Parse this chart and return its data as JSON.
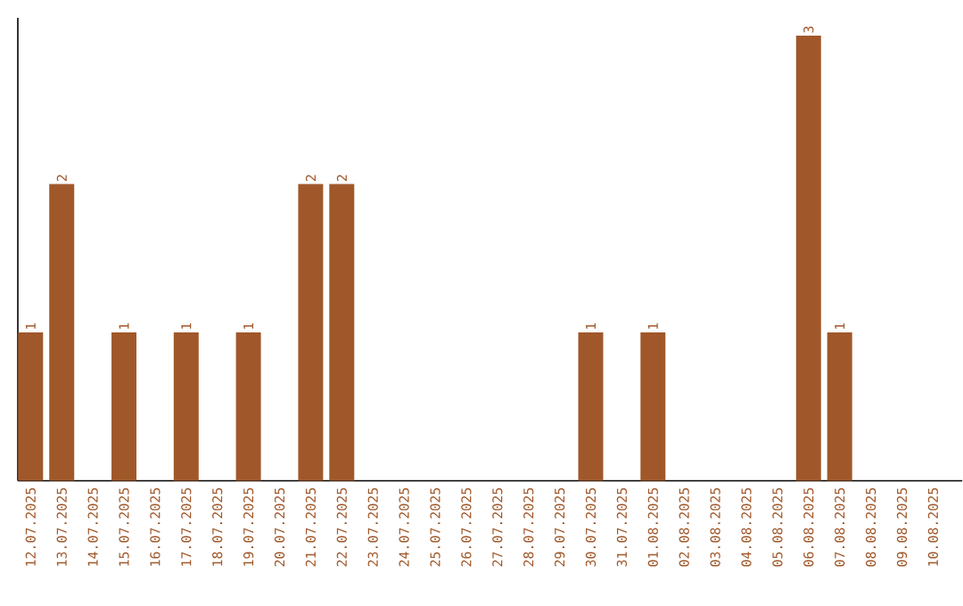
{
  "chart_data": {
    "type": "bar",
    "categories": [
      "12.07.2025",
      "13.07.2025",
      "14.07.2025",
      "15.07.2025",
      "16.07.2025",
      "17.07.2025",
      "18.07.2025",
      "19.07.2025",
      "20.07.2025",
      "21.07.2025",
      "22.07.2025",
      "23.07.2025",
      "24.07.2025",
      "25.07.2025",
      "26.07.2025",
      "27.07.2025",
      "28.07.2025",
      "29.07.2025",
      "30.07.2025",
      "31.07.2025",
      "01.08.2025",
      "02.08.2025",
      "03.08.2025",
      "04.08.2025",
      "05.08.2025",
      "06.08.2025",
      "07.08.2025",
      "08.08.2025",
      "09.08.2025",
      "10.08.2025"
    ],
    "values": [
      1,
      2,
      0,
      1,
      0,
      1,
      0,
      1,
      0,
      2,
      2,
      0,
      0,
      0,
      0,
      0,
      0,
      0,
      1,
      0,
      1,
      0,
      0,
      0,
      0,
      3,
      1,
      0,
      0,
      0
    ],
    "value_labels": [
      "1",
      "2",
      null,
      "1",
      null,
      "1",
      null,
      "1",
      null,
      "2",
      "2",
      null,
      null,
      null,
      null,
      null,
      null,
      null,
      "1",
      null,
      "1",
      null,
      null,
      null,
      null,
      "3",
      "1",
      null,
      null,
      null
    ],
    "color": "#a0582a",
    "tick_labels": "x"
  }
}
